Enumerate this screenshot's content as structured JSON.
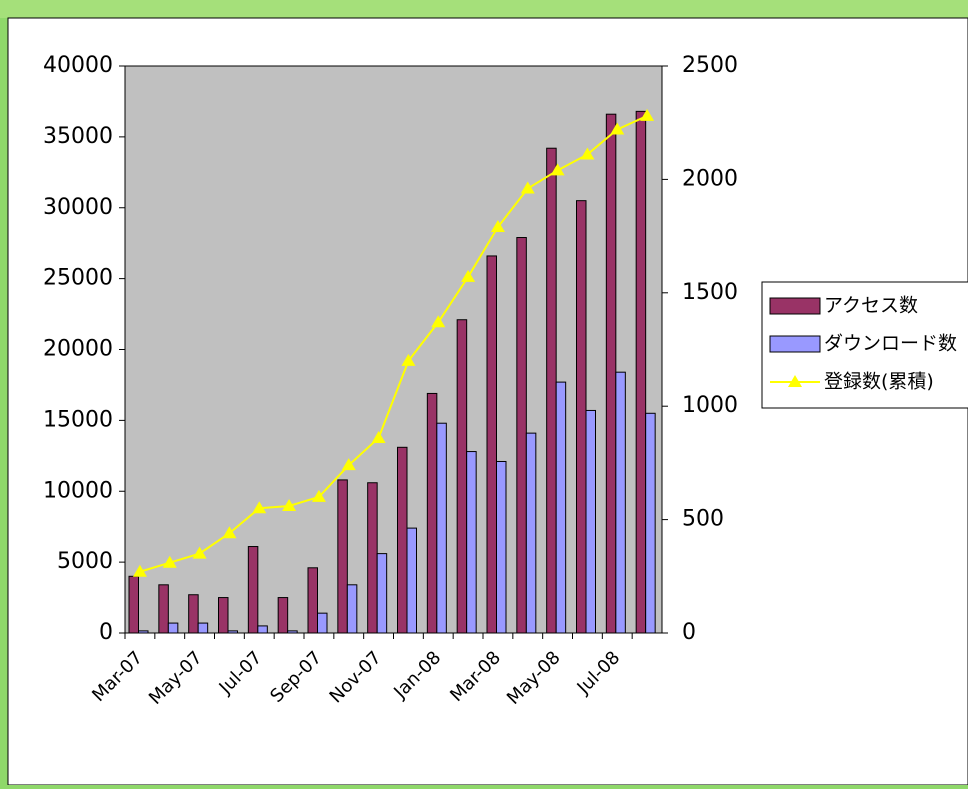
{
  "chart_data": {
    "type": "bar-line",
    "categories": [
      "Mar-07",
      null,
      "May-07",
      null,
      "Jul-07",
      null,
      "Sep-07",
      null,
      "Nov-07",
      null,
      "Jan-08",
      null,
      "Mar-08",
      null,
      "May-08",
      null,
      "Jul-08",
      null
    ],
    "series": [
      {
        "name": "アクセス数",
        "type": "bar",
        "color": "#993366",
        "values": [
          4000,
          3400,
          2700,
          2500,
          6100,
          2500,
          4600,
          10800,
          10600,
          13100,
          16900,
          22100,
          26600,
          27900,
          34200,
          30500,
          36600,
          36800
        ]
      },
      {
        "name": "ダウンロード数",
        "type": "bar",
        "color": "#9999ff",
        "values": [
          150,
          700,
          700,
          150,
          500,
          150,
          1400,
          3400,
          5600,
          7400,
          14800,
          12800,
          12100,
          14100,
          17700,
          15700,
          18400,
          15500
        ]
      },
      {
        "name": "登録数(累積)",
        "type": "line",
        "axis": "y2",
        "color": "#ffff00",
        "values": [
          270,
          310,
          350,
          440,
          550,
          560,
          600,
          740,
          860,
          1200,
          1370,
          1570,
          1790,
          1960,
          2040,
          2110,
          2220,
          2280
        ]
      }
    ],
    "ylim": [
      0,
      40000
    ],
    "yticks": [
      0,
      5000,
      10000,
      15000,
      20000,
      25000,
      30000,
      35000,
      40000
    ],
    "y2lim": [
      0,
      2500
    ],
    "y2ticks": [
      0,
      500,
      1000,
      1500,
      2000,
      2500
    ],
    "grid": false,
    "legend": "right",
    "plot_background": "#c0c0c0"
  }
}
